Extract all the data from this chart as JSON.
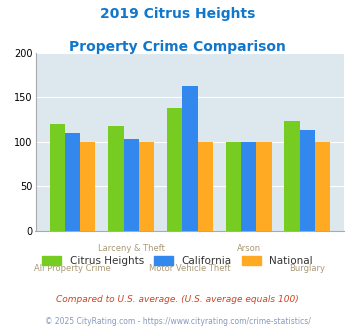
{
  "title_line1": "2019 Citrus Heights",
  "title_line2": "Property Crime Comparison",
  "categories": [
    "All Property Crime",
    "Larceny & Theft",
    "Motor Vehicle Theft",
    "Arson",
    "Burglary"
  ],
  "top_labels": [
    "",
    "Larceny & Theft",
    "",
    "Arson",
    ""
  ],
  "bottom_labels": [
    "All Property Crime",
    "",
    "Motor Vehicle Theft",
    "",
    "Burglary"
  ],
  "citrus_heights": [
    120,
    118,
    138,
    100,
    124
  ],
  "california": [
    110,
    103,
    163,
    100,
    113
  ],
  "national": [
    100,
    100,
    100,
    100,
    100
  ],
  "colors": {
    "citrus_heights": "#77cc22",
    "california": "#3388ee",
    "national": "#ffaa22"
  },
  "ylim": [
    0,
    200
  ],
  "yticks": [
    0,
    50,
    100,
    150,
    200
  ],
  "plot_bg": "#dce8ee",
  "title_color": "#1177cc",
  "xlabel_color": "#aa9977",
  "footnote1": "Compared to U.S. average. (U.S. average equals 100)",
  "footnote2": "© 2025 CityRating.com - https://www.cityrating.com/crime-statistics/",
  "footnote1_color": "#cc4422",
  "footnote2_color": "#8899bb"
}
